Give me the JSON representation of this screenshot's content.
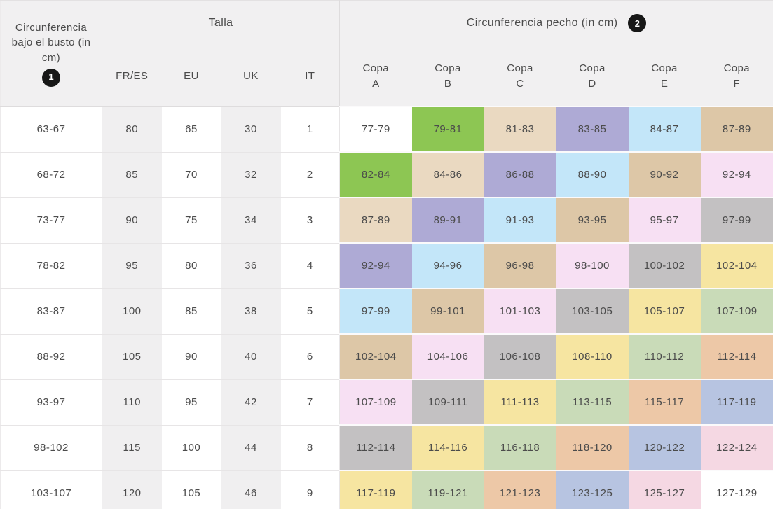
{
  "header": {
    "underbust_title": "Circunferencia bajo el busto (in cm)",
    "underbust_badge": "1",
    "talla_title": "Talla",
    "talla_cols": [
      "FR/ES",
      "EU",
      "UK",
      "IT"
    ],
    "pecho_title": "Circunferencia pecho (in cm)",
    "pecho_badge": "2",
    "cups": [
      {
        "word": "Copa",
        "letter": "A"
      },
      {
        "word": "Copa",
        "letter": "B"
      },
      {
        "word": "Copa",
        "letter": "C"
      },
      {
        "word": "Copa",
        "letter": "D"
      },
      {
        "word": "Copa",
        "letter": "E"
      },
      {
        "word": "Copa",
        "letter": "F"
      }
    ]
  },
  "palette": {
    "white": "#ffffff",
    "green": "#8dc653",
    "tanLight": "#ead9c1",
    "purple": "#aeaad5",
    "blue": "#c3e6f9",
    "tanDark": "#ddc7a7",
    "pinkLight": "#f7e0f3",
    "gray": "#c3c1c2",
    "yellow": "#f6e5a1",
    "greenLight": "#c9dbb8",
    "salmon": "#edc8a7",
    "periwinkle": "#b7c4e1",
    "rose": "#f5d8e3",
    "header_bg": "#f1f0f1",
    "stripe_bg": "#f0eff0",
    "badge_bg": "#171717",
    "text": "#4b4b4b"
  },
  "rows": [
    {
      "underbust": "63-67",
      "talla": [
        "80",
        "65",
        "30",
        "1"
      ],
      "cups": [
        {
          "value": "77-79",
          "color": "white"
        },
        {
          "value": "79-81",
          "color": "green"
        },
        {
          "value": "81-83",
          "color": "tanLight"
        },
        {
          "value": "83-85",
          "color": "purple"
        },
        {
          "value": "84-87",
          "color": "blue"
        },
        {
          "value": "87-89",
          "color": "tanDark"
        }
      ]
    },
    {
      "underbust": "68-72",
      "talla": [
        "85",
        "70",
        "32",
        "2"
      ],
      "cups": [
        {
          "value": "82-84",
          "color": "green"
        },
        {
          "value": "84-86",
          "color": "tanLight"
        },
        {
          "value": "86-88",
          "color": "purple"
        },
        {
          "value": "88-90",
          "color": "blue"
        },
        {
          "value": "90-92",
          "color": "tanDark"
        },
        {
          "value": "92-94",
          "color": "pinkLight"
        }
      ]
    },
    {
      "underbust": "73-77",
      "talla": [
        "90",
        "75",
        "34",
        "3"
      ],
      "cups": [
        {
          "value": "87-89",
          "color": "tanLight"
        },
        {
          "value": "89-91",
          "color": "purple"
        },
        {
          "value": "91-93",
          "color": "blue"
        },
        {
          "value": "93-95",
          "color": "tanDark"
        },
        {
          "value": "95-97",
          "color": "pinkLight"
        },
        {
          "value": "97-99",
          "color": "gray"
        }
      ]
    },
    {
      "underbust": "78-82",
      "talla": [
        "95",
        "80",
        "36",
        "4"
      ],
      "cups": [
        {
          "value": "92-94",
          "color": "purple"
        },
        {
          "value": "94-96",
          "color": "blue"
        },
        {
          "value": "96-98",
          "color": "tanDark"
        },
        {
          "value": "98-100",
          "color": "pinkLight"
        },
        {
          "value": "100-102",
          "color": "gray"
        },
        {
          "value": "102-104",
          "color": "yellow"
        }
      ]
    },
    {
      "underbust": "83-87",
      "talla": [
        "100",
        "85",
        "38",
        "5"
      ],
      "cups": [
        {
          "value": "97-99",
          "color": "blue"
        },
        {
          "value": "99-101",
          "color": "tanDark"
        },
        {
          "value": "101-103",
          "color": "pinkLight"
        },
        {
          "value": "103-105",
          "color": "gray"
        },
        {
          "value": "105-107",
          "color": "yellow"
        },
        {
          "value": "107-109",
          "color": "greenLight"
        }
      ]
    },
    {
      "underbust": "88-92",
      "talla": [
        "105",
        "90",
        "40",
        "6"
      ],
      "cups": [
        {
          "value": "102-104",
          "color": "tanDark"
        },
        {
          "value": "104-106",
          "color": "pinkLight"
        },
        {
          "value": "106-108",
          "color": "gray"
        },
        {
          "value": "108-110",
          "color": "yellow"
        },
        {
          "value": "110-112",
          "color": "greenLight"
        },
        {
          "value": "112-114",
          "color": "salmon"
        }
      ]
    },
    {
      "underbust": "93-97",
      "talla": [
        "110",
        "95",
        "42",
        "7"
      ],
      "cups": [
        {
          "value": "107-109",
          "color": "pinkLight"
        },
        {
          "value": "109-111",
          "color": "gray"
        },
        {
          "value": "111-113",
          "color": "yellow"
        },
        {
          "value": "113-115",
          "color": "greenLight"
        },
        {
          "value": "115-117",
          "color": "salmon"
        },
        {
          "value": "117-119",
          "color": "periwinkle"
        }
      ]
    },
    {
      "underbust": "98-102",
      "talla": [
        "115",
        "100",
        "44",
        "8"
      ],
      "cups": [
        {
          "value": "112-114",
          "color": "gray"
        },
        {
          "value": "114-116",
          "color": "yellow"
        },
        {
          "value": "116-118",
          "color": "greenLight"
        },
        {
          "value": "118-120",
          "color": "salmon"
        },
        {
          "value": "120-122",
          "color": "periwinkle"
        },
        {
          "value": "122-124",
          "color": "rose"
        }
      ]
    },
    {
      "underbust": "103-107",
      "talla": [
        "120",
        "105",
        "46",
        "9"
      ],
      "cups": [
        {
          "value": "117-119",
          "color": "yellow"
        },
        {
          "value": "119-121",
          "color": "greenLight"
        },
        {
          "value": "121-123",
          "color": "salmon"
        },
        {
          "value": "123-125",
          "color": "periwinkle"
        },
        {
          "value": "125-127",
          "color": "rose"
        },
        {
          "value": "127-129",
          "color": "white"
        }
      ]
    }
  ]
}
